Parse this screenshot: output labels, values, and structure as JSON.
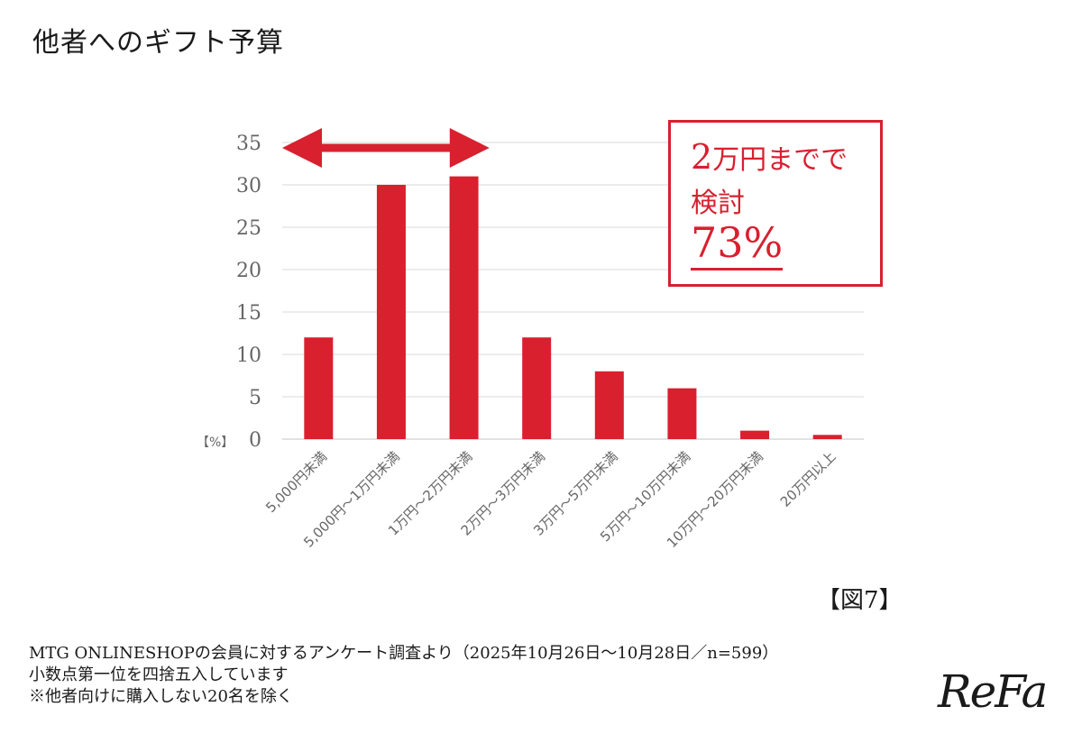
{
  "title": "他者へのギフト予算",
  "callout": {
    "line1_num": "2",
    "line1_rest": "万円までで",
    "line2": "検討",
    "line3": "73%"
  },
  "figure_label": "【図7】",
  "notes": [
    "MTG ONLINESHOPの会員に対するアンケート調査より（2025年10月26日〜10月28日／n=599）",
    "小数点第一位を四捨五入しています",
    "※他者向けに購入しない20名を除く"
  ],
  "logo": "ReFa",
  "colors": {
    "bar": "#d8202f",
    "grid": "#d9d9d9",
    "axis_text": "#666666"
  },
  "chart_data": {
    "type": "bar",
    "categories": [
      "5,000円未満",
      "5,000円〜1万円未満",
      "1万円〜2万円未満",
      "2万円〜3万円未満",
      "3万円〜5万円未満",
      "5万円〜10万円未満",
      "10万円〜20万円未満",
      "20万円以上"
    ],
    "values": [
      12,
      30,
      31,
      12,
      8,
      6,
      1,
      0.5
    ],
    "ylim": [
      0,
      35
    ],
    "yticks": [
      0,
      5,
      10,
      15,
      20,
      25,
      30,
      35
    ],
    "unit_label": "【%】",
    "grid": true,
    "annotation": "double-arrow spanning first three categories"
  }
}
